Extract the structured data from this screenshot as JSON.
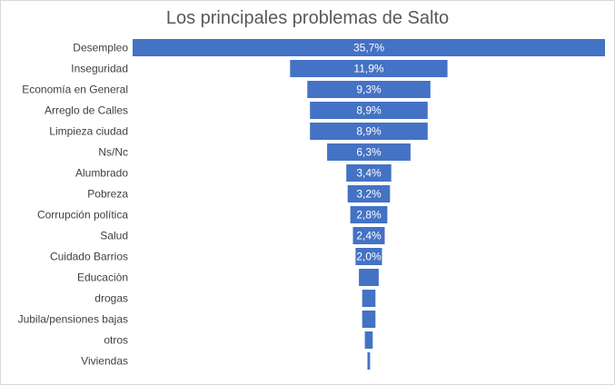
{
  "chart_data": {
    "type": "bar",
    "orientation": "horizontal",
    "style": "funnel",
    "title": "Los principales problemas de Salto",
    "categories": [
      "Desempleo",
      "Inseguridad",
      "Economía en General",
      "Arreglo de Calles",
      "Limpieza ciudad",
      "Ns/Nc",
      "Alumbrado",
      "Pobreza",
      "Corrupción política",
      "Salud",
      "Cuidado Barrios",
      "Educaciòn",
      "drogas",
      "Jubila/pensiones bajas",
      "otros",
      "Viviendas"
    ],
    "values": [
      35.7,
      11.9,
      9.3,
      8.9,
      8.9,
      6.3,
      3.4,
      3.2,
      2.8,
      2.4,
      2.0,
      1.5,
      1.0,
      1.0,
      0.6,
      0.2
    ],
    "data_labels": [
      "35,7%",
      "11,9%",
      "9,3%",
      "8,9%",
      "8,9%",
      "6,3%",
      "3,4%",
      "3,2%",
      "2,8%",
      "2,4%",
      "2,0%",
      "",
      "",
      "",
      "",
      ""
    ],
    "bar_color": "#4472c4",
    "legend": "none",
    "grid": false
  }
}
